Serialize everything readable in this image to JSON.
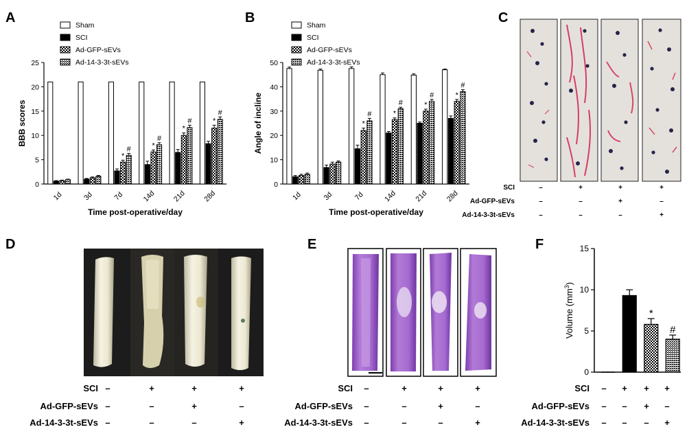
{
  "panels": {
    "A": "A",
    "B": "B",
    "C": "C",
    "D": "D",
    "E": "E",
    "F": "F"
  },
  "colors": {
    "black": "#000000",
    "white": "#ffffff",
    "paper": "#e4e1dc",
    "red_ink": "#d42050",
    "he_stain": "#9a5cc4",
    "photo_bg": "#1c1c1c",
    "cord": "#ece9d8"
  },
  "legend_items": [
    {
      "label": "Sham",
      "pattern": "white"
    },
    {
      "label": "SCI",
      "pattern": "black"
    },
    {
      "label": "Ad-GFP-sEVs",
      "pattern": "checker"
    },
    {
      "label": "Ad-14-3-3t-sEVs",
      "pattern": "dense"
    }
  ],
  "chart_data": [
    {
      "id": "A",
      "type": "bar",
      "title": "",
      "xlabel": "Time post-operative/day",
      "ylabel": "BBB scores",
      "ylim": [
        0,
        25
      ],
      "yticks": [
        "0",
        "5",
        "10",
        "15",
        "20",
        "25"
      ],
      "categories": [
        "1d",
        "3d",
        "7d",
        "14d",
        "21d",
        "28d"
      ],
      "series": [
        {
          "name": "Sham",
          "values": [
            21,
            21,
            21,
            21,
            21,
            21
          ],
          "errors": [
            0,
            0,
            0,
            0,
            0,
            0
          ],
          "marks": [
            "",
            "",
            "",
            "",
            "",
            ""
          ]
        },
        {
          "name": "SCI",
          "values": [
            0.6,
            1.0,
            2.7,
            4.0,
            6.5,
            8.3
          ],
          "errors": [
            0.1,
            0.15,
            0.4,
            0.7,
            0.6,
            0.5
          ],
          "marks": [
            "",
            "",
            "",
            "",
            "",
            ""
          ]
        },
        {
          "name": "Ad-GFP-sEVs",
          "values": [
            0.7,
            1.3,
            4.5,
            6.6,
            10.0,
            11.5
          ],
          "errors": [
            0.1,
            0.15,
            0.4,
            0.4,
            0.5,
            0.6
          ],
          "marks": [
            "",
            "",
            "*",
            "*",
            "*",
            "*"
          ]
        },
        {
          "name": "Ad-14-3-3t-sEVs",
          "values": [
            0.9,
            1.6,
            5.9,
            8.1,
            11.6,
            13.3
          ],
          "errors": [
            0.1,
            0.15,
            0.4,
            0.4,
            0.5,
            0.5
          ],
          "marks": [
            "",
            "",
            "#",
            "#",
            "#",
            "#"
          ]
        }
      ]
    },
    {
      "id": "B",
      "type": "bar",
      "title": "",
      "xlabel": "Time post-operative/day",
      "ylabel": "Angle of incline",
      "ylim": [
        0,
        50
      ],
      "yticks": [
        "0",
        "10",
        "20",
        "30",
        "40",
        "50"
      ],
      "categories": [
        "1d",
        "3d",
        "7d",
        "14d",
        "21d",
        "28d"
      ],
      "series": [
        {
          "name": "Sham",
          "values": [
            47.5,
            46.8,
            47.5,
            45.0,
            44.8,
            47.0
          ],
          "errors": [
            0.6,
            0.5,
            0.7,
            0.7,
            0.5,
            0.3
          ],
          "marks": [
            "",
            "",
            "",
            "",
            "",
            ""
          ]
        },
        {
          "name": "SCI",
          "values": [
            3.0,
            6.8,
            14.5,
            21.0,
            25.0,
            27.0
          ],
          "errors": [
            0.5,
            1.0,
            1.5,
            0.6,
            0.5,
            1.0
          ],
          "marks": [
            "",
            "",
            "",
            "",
            "",
            ""
          ]
        },
        {
          "name": "Ad-GFP-sEVs",
          "values": [
            3.5,
            8.2,
            22.0,
            26.5,
            30.0,
            34.0
          ],
          "errors": [
            0.5,
            0.8,
            1.0,
            0.7,
            0.8,
            0.8
          ],
          "marks": [
            "",
            "",
            "*",
            "*",
            "*",
            "*"
          ]
        },
        {
          "name": "Ad-14-3-3t-sEVs",
          "values": [
            4.0,
            9.0,
            26.0,
            31.0,
            34.0,
            38.0
          ],
          "errors": [
            0.5,
            0.5,
            1.0,
            0.6,
            0.8,
            0.8
          ],
          "marks": [
            "",
            "",
            "#",
            "#",
            "#",
            "#"
          ]
        }
      ]
    },
    {
      "id": "F",
      "type": "bar",
      "title": "",
      "xlabel": "",
      "ylabel": "Volume (mm",
      "ylabel_sup": "3",
      "ylabel_end": ")",
      "ylim": [
        0,
        15
      ],
      "yticks": [
        "0",
        "5",
        "10",
        "15"
      ],
      "categories": [
        "Sham",
        "SCI",
        "Ad-GFP-sEVs",
        "Ad-14-3-3t-sEVs"
      ],
      "values": [
        0,
        9.3,
        5.8,
        4.0
      ],
      "errors": [
        0,
        0.7,
        0.7,
        0.5
      ],
      "patterns": [
        "white",
        "black",
        "checker",
        "dense"
      ],
      "marks": [
        "",
        "",
        "*",
        "#"
      ]
    }
  ],
  "conditions": {
    "row_labels": [
      "SCI",
      "Ad-GFP-sEVs",
      "Ad-14-3-3t-sEVs"
    ],
    "groups": [
      [
        "–",
        "–",
        "–"
      ],
      [
        "+",
        "–",
        "–"
      ],
      [
        "+",
        "+",
        "–"
      ],
      [
        "+",
        "–",
        "+"
      ]
    ]
  }
}
